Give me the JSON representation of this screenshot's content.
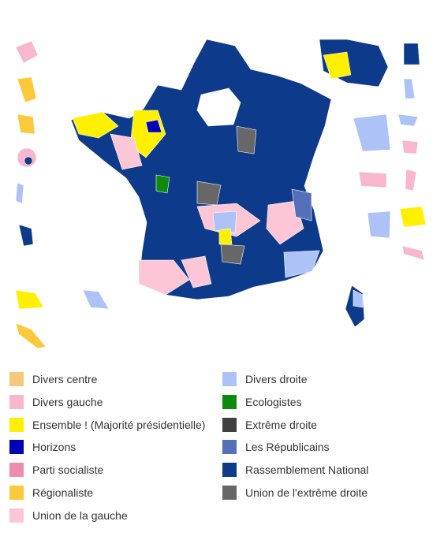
{
  "legend": {
    "items": [
      {
        "label": "Divers centre",
        "color": "#f7c77c"
      },
      {
        "label": "Divers gauche",
        "color": "#f8b6cf"
      },
      {
        "label": "Ensemble ! (Majorité présidentielle)",
        "color": "#fff000"
      },
      {
        "label": "Horizons",
        "color": "#0000b4"
      },
      {
        "label": "Parti socialiste",
        "color": "#f08bb0"
      },
      {
        "label": "Régionaliste",
        "color": "#fcc93a"
      },
      {
        "label": "Union de la gauche",
        "color": "#fcc6d6"
      },
      {
        "label": "Divers droite",
        "color": "#adc3f7"
      },
      {
        "label": "Ecologistes",
        "color": "#0b8a0b"
      },
      {
        "label": "Extrême droite",
        "color": "#404040"
      },
      {
        "label": "Les Républicains",
        "color": "#5470b8"
      },
      {
        "label": "Rassemblement National",
        "color": "#0d3a8a"
      },
      {
        "label": "Union de l'extrême droite",
        "color": "#676767"
      }
    ]
  }
}
